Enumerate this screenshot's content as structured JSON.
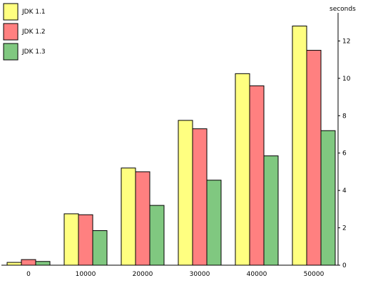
{
  "chart_data": {
    "type": "bar",
    "title": "",
    "xlabel": "",
    "ylabel": "seconds",
    "ylim": [
      0,
      13.2
    ],
    "y_ticks": [
      "0",
      "2",
      "4",
      "6",
      "8",
      "10",
      "12"
    ],
    "y_axis_side": "right",
    "grid": false,
    "legend_position": "top-left",
    "categories": [
      "0",
      "10000",
      "20000",
      "30000",
      "40000",
      "50000"
    ],
    "series": [
      {
        "name": "JDK 1.1",
        "color": "#ffff80",
        "values": [
          0.15,
          2.75,
          5.2,
          7.75,
          10.25,
          12.8
        ]
      },
      {
        "name": "JDK 1.2",
        "color": "#ff8080",
        "values": [
          0.3,
          2.7,
          5.0,
          7.3,
          9.6,
          11.5
        ]
      },
      {
        "name": "JDK 1.3",
        "color": "#80c880",
        "values": [
          0.2,
          1.85,
          3.2,
          4.55,
          5.85,
          7.2
        ]
      }
    ]
  }
}
